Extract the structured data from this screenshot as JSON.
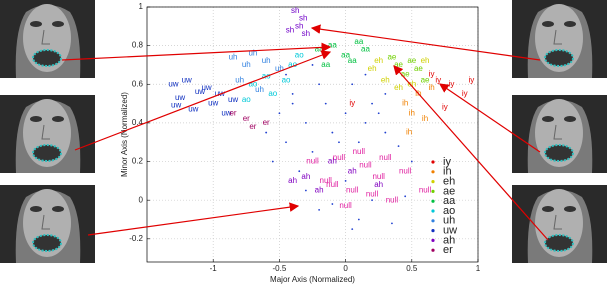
{
  "chart_data": {
    "type": "scatter",
    "x_label": "Major Axis (Normalized)",
    "y_label": "Minor Axis (Normalized)",
    "xlim": [
      -1.5,
      1.0
    ],
    "ylim": [
      -0.32,
      1.0
    ],
    "xticks": [
      -1,
      -0.5,
      0,
      0.5,
      1
    ],
    "yticks": [
      -0.2,
      0,
      0.2,
      0.4,
      0.6,
      0.8,
      1
    ],
    "grid": true,
    "legend": "lower right",
    "series": [
      {
        "name": "iy",
        "color": "#e00000",
        "marker": "label",
        "in_legend": true,
        "x": [
          0.7,
          0.8,
          0.95,
          0.9,
          0.65,
          0.05,
          0.75
        ],
        "values": [
          0.62,
          0.6,
          0.62,
          0.55,
          0.65,
          0.5,
          0.48
        ]
      },
      {
        "name": "ih",
        "color": "#f08000",
        "marker": "label",
        "in_legend": true,
        "x": [
          0.45,
          0.5,
          0.55,
          0.6,
          0.48,
          0.65
        ],
        "values": [
          0.5,
          0.45,
          0.55,
          0.42,
          0.35,
          0.58
        ]
      },
      {
        "name": "eh",
        "color": "#d0d000",
        "marker": "label",
        "in_legend": true,
        "x": [
          0.2,
          0.3,
          0.25,
          0.4,
          0.5,
          0.6
        ],
        "values": [
          0.68,
          0.62,
          0.72,
          0.58,
          0.6,
          0.72
        ]
      },
      {
        "name": "ae",
        "color": "#70d000",
        "marker": "label",
        "in_legend": true,
        "x": [
          0.4,
          0.5,
          0.45,
          0.55,
          0.35,
          0.6
        ],
        "values": [
          0.7,
          0.72,
          0.65,
          0.68,
          0.74,
          0.62
        ]
      },
      {
        "name": "aa",
        "color": "#00c040",
        "marker": "label",
        "in_legend": true,
        "x": [
          -0.2,
          -0.1,
          0,
          0.1,
          -0.15,
          0.05,
          0.15
        ],
        "values": [
          0.78,
          0.8,
          0.75,
          0.82,
          0.7,
          0.72,
          0.78
        ]
      },
      {
        "name": "ao",
        "color": "#00c8d8",
        "marker": "label",
        "in_legend": true,
        "x": [
          -0.7,
          -0.6,
          -0.4,
          -0.55,
          -0.45,
          -0.75,
          -0.35
        ],
        "values": [
          0.6,
          0.64,
          0.7,
          0.55,
          0.62,
          0.52,
          0.75
        ]
      },
      {
        "name": "uh",
        "color": "#3080e0",
        "marker": "label",
        "in_legend": true,
        "x": [
          -0.85,
          -0.7,
          -0.6,
          -0.75,
          -0.5,
          -0.8,
          -0.65
        ],
        "values": [
          0.74,
          0.76,
          0.72,
          0.7,
          0.68,
          0.62,
          0.57
        ]
      },
      {
        "name": "uw",
        "color": "#1030c0",
        "marker": "label",
        "in_legend": true,
        "x": [
          -1.3,
          -1.2,
          -1.25,
          -1.1,
          -1.0,
          -0.95,
          -1.15,
          -0.85,
          -1.28,
          -1.05,
          -0.9
        ],
        "values": [
          0.6,
          0.62,
          0.53,
          0.56,
          0.5,
          0.55,
          0.47,
          0.52,
          0.49,
          0.58,
          0.45
        ]
      },
      {
        "name": "ah",
        "color": "#8000c0",
        "marker": "label",
        "in_legend": true,
        "x": [
          -0.3,
          -0.2,
          -0.1,
          0.05,
          0.25,
          -0.4
        ],
        "values": [
          0.12,
          0.05,
          0.2,
          0.15,
          0.08,
          0.1
        ]
      },
      {
        "name": "er",
        "color": "#a00060",
        "marker": "label",
        "in_legend": true,
        "x": [
          -0.75,
          -0.7,
          -0.85,
          -0.6
        ],
        "values": [
          0.42,
          0.38,
          0.45,
          0.4
        ]
      },
      {
        "name": "sh",
        "color": "#7000c8",
        "marker": "label",
        "in_legend": false,
        "x": [
          -0.38,
          -0.35,
          -0.3,
          -0.42,
          -0.32
        ],
        "values": [
          0.98,
          0.9,
          0.86,
          0.88,
          0.94
        ]
      },
      {
        "name": "null",
        "color": "#e020a0",
        "marker": "label",
        "in_legend": false,
        "x": [
          -0.25,
          -0.15,
          -0.05,
          0.05,
          0.15,
          0.25,
          0.35,
          0.1,
          0,
          -0.1,
          0.2,
          0.3,
          0.45,
          0.6
        ],
        "values": [
          0.2,
          0.1,
          0.22,
          0.05,
          0.18,
          0.12,
          0.0,
          0.25,
          -0.03,
          0.08,
          0.03,
          0.22,
          0.15,
          0.05
        ]
      },
      {
        "color": "#2040d0",
        "marker": "dot",
        "in_legend": false,
        "x": [
          -0.5,
          -0.45,
          -0.4,
          -0.3,
          -0.25,
          -0.2,
          -0.1,
          0,
          0.1,
          0.2,
          -0.35,
          -0.15,
          0.05,
          0.15,
          0.3,
          -0.6,
          -0.55,
          -0.05,
          0.25,
          0.4,
          -0.3,
          -0.2,
          0.1,
          0.35,
          -0.4,
          0.0,
          0.2,
          0.45,
          -0.1,
          0.3,
          -0.45,
          0.15,
          0.5,
          -0.25,
          0.05
        ],
        "values": [
          0.45,
          0.3,
          0.55,
          0.4,
          0.25,
          0.6,
          0.35,
          0.45,
          0.3,
          0.5,
          0.15,
          0.5,
          0.6,
          0.4,
          0.35,
          0.35,
          0.2,
          0.3,
          0.45,
          0.28,
          0.05,
          -0.05,
          -0.1,
          -0.12,
          0.5,
          0.1,
          0.0,
          0.02,
          -0.02,
          0.55,
          0.65,
          0.65,
          0.2,
          0.7,
          -0.15
        ]
      }
    ]
  }
}
